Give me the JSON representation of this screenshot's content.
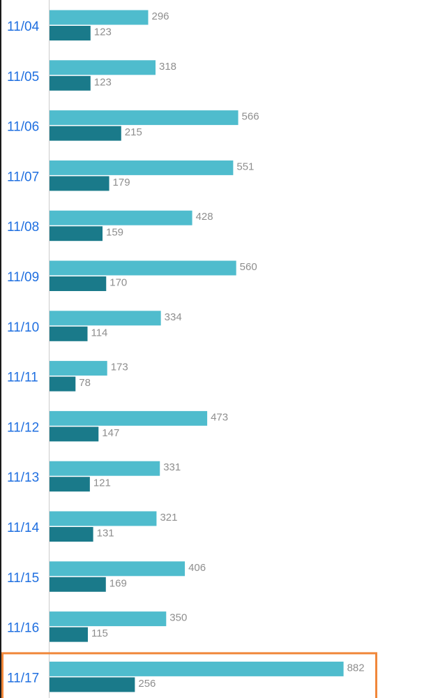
{
  "chart_data": {
    "type": "bar",
    "orientation": "horizontal",
    "categories": [
      "11/04",
      "11/05",
      "11/06",
      "11/07",
      "11/08",
      "11/09",
      "11/10",
      "11/11",
      "11/12",
      "11/13",
      "11/14",
      "11/15",
      "11/16",
      "11/17"
    ],
    "series": [
      {
        "values": [
          296,
          318,
          566,
          551,
          428,
          560,
          334,
          173,
          473,
          331,
          321,
          406,
          350,
          882
        ]
      },
      {
        "values": [
          123,
          123,
          215,
          179,
          159,
          170,
          114,
          78,
          147,
          121,
          131,
          169,
          115,
          256
        ]
      }
    ],
    "highlighted_category": "11/17",
    "xlim": [
      0,
      950
    ],
    "grid": false,
    "show_value_labels": true
  },
  "colors": {
    "series_light": "#4fbccd",
    "series_dark": "#1a7a8a",
    "date_text": "#1f6fe0",
    "value_text": "#8e8e8e",
    "axis_line": "#cccccc",
    "highlight": "#f0873a"
  }
}
